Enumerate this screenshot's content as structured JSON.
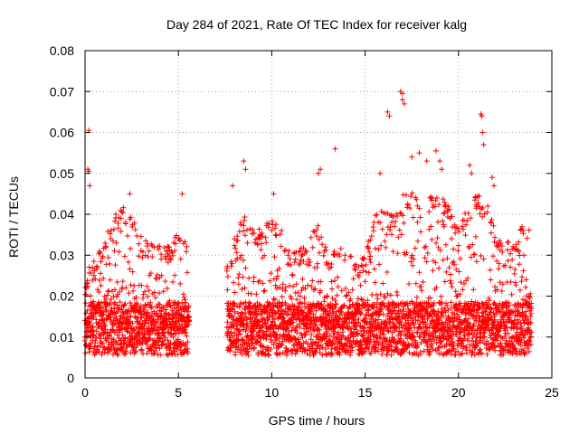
{
  "chart_data": {
    "type": "scatter",
    "title": "Day 284 of 2021, Rate Of TEC Index for receiver kalg",
    "xlabel": "GPS time / hours",
    "ylabel": "ROTI / TECUs",
    "xlim": [
      0,
      25
    ],
    "ylim": [
      0,
      0.08
    ],
    "x_ticks": [
      0,
      5,
      10,
      15,
      20,
      25
    ],
    "x_tick_labels": [
      "0",
      "5",
      "10",
      "15",
      "20",
      "25"
    ],
    "y_ticks": [
      0,
      0.01,
      0.02,
      0.03,
      0.04,
      0.05,
      0.06,
      0.07,
      0.08
    ],
    "y_tick_labels": [
      "0",
      "0.01",
      "0.02",
      "0.03",
      "0.04",
      "0.05",
      "0.06",
      "0.07",
      "0.08"
    ],
    "grid": true,
    "marker": "+",
    "series": [
      {
        "name": "ROTI",
        "color": "#ff0000",
        "segments": [
          {
            "x_start": 0.0,
            "x_end": 5.6,
            "base_y": 0.012
          },
          {
            "x_start": 7.6,
            "x_end": 23.9,
            "base_y": 0.012
          }
        ],
        "envelope": [
          {
            "x": 0.0,
            "y": 0.025
          },
          {
            "x": 0.5,
            "y": 0.03
          },
          {
            "x": 1.0,
            "y": 0.033
          },
          {
            "x": 1.5,
            "y": 0.04
          },
          {
            "x": 2.0,
            "y": 0.042
          },
          {
            "x": 2.5,
            "y": 0.041
          },
          {
            "x": 3.0,
            "y": 0.035
          },
          {
            "x": 3.5,
            "y": 0.033
          },
          {
            "x": 4.0,
            "y": 0.033
          },
          {
            "x": 4.5,
            "y": 0.032
          },
          {
            "x": 5.0,
            "y": 0.036
          },
          {
            "x": 5.5,
            "y": 0.033
          },
          {
            "x": 7.7,
            "y": 0.03
          },
          {
            "x": 8.0,
            "y": 0.035
          },
          {
            "x": 8.5,
            "y": 0.04
          },
          {
            "x": 9.0,
            "y": 0.037
          },
          {
            "x": 9.5,
            "y": 0.036
          },
          {
            "x": 10.0,
            "y": 0.04
          },
          {
            "x": 10.5,
            "y": 0.037
          },
          {
            "x": 11.0,
            "y": 0.03
          },
          {
            "x": 11.5,
            "y": 0.032
          },
          {
            "x": 12.0,
            "y": 0.035
          },
          {
            "x": 12.5,
            "y": 0.038
          },
          {
            "x": 13.0,
            "y": 0.03
          },
          {
            "x": 13.5,
            "y": 0.033
          },
          {
            "x": 14.0,
            "y": 0.032
          },
          {
            "x": 14.5,
            "y": 0.028
          },
          {
            "x": 15.0,
            "y": 0.03
          },
          {
            "x": 15.5,
            "y": 0.04
          },
          {
            "x": 16.0,
            "y": 0.043
          },
          {
            "x": 16.5,
            "y": 0.04
          },
          {
            "x": 17.0,
            "y": 0.045
          },
          {
            "x": 17.5,
            "y": 0.046
          },
          {
            "x": 18.0,
            "y": 0.042
          },
          {
            "x": 18.5,
            "y": 0.045
          },
          {
            "x": 19.0,
            "y": 0.045
          },
          {
            "x": 19.5,
            "y": 0.042
          },
          {
            "x": 20.0,
            "y": 0.037
          },
          {
            "x": 20.5,
            "y": 0.042
          },
          {
            "x": 21.0,
            "y": 0.045
          },
          {
            "x": 21.5,
            "y": 0.044
          },
          {
            "x": 22.0,
            "y": 0.035
          },
          {
            "x": 22.5,
            "y": 0.033
          },
          {
            "x": 23.0,
            "y": 0.034
          },
          {
            "x": 23.5,
            "y": 0.039
          },
          {
            "x": 23.9,
            "y": 0.035
          }
        ],
        "outliers": [
          {
            "x": 0.2,
            "y": 0.0605
          },
          {
            "x": 0.15,
            "y": 0.051
          },
          {
            "x": 0.2,
            "y": 0.0505
          },
          {
            "x": 0.25,
            "y": 0.047
          },
          {
            "x": 2.4,
            "y": 0.045
          },
          {
            "x": 5.2,
            "y": 0.045
          },
          {
            "x": 7.9,
            "y": 0.047
          },
          {
            "x": 8.5,
            "y": 0.053
          },
          {
            "x": 8.6,
            "y": 0.051
          },
          {
            "x": 10.1,
            "y": 0.045
          },
          {
            "x": 12.5,
            "y": 0.05
          },
          {
            "x": 12.6,
            "y": 0.051
          },
          {
            "x": 13.4,
            "y": 0.056
          },
          {
            "x": 15.8,
            "y": 0.05
          },
          {
            "x": 16.2,
            "y": 0.065
          },
          {
            "x": 16.3,
            "y": 0.064
          },
          {
            "x": 16.9,
            "y": 0.07
          },
          {
            "x": 17.0,
            "y": 0.0695
          },
          {
            "x": 17.0,
            "y": 0.068
          },
          {
            "x": 17.1,
            "y": 0.067
          },
          {
            "x": 17.5,
            "y": 0.054
          },
          {
            "x": 17.9,
            "y": 0.055
          },
          {
            "x": 18.3,
            "y": 0.053
          },
          {
            "x": 18.8,
            "y": 0.0555
          },
          {
            "x": 19.0,
            "y": 0.053
          },
          {
            "x": 19.1,
            "y": 0.051
          },
          {
            "x": 20.6,
            "y": 0.052
          },
          {
            "x": 20.7,
            "y": 0.05
          },
          {
            "x": 21.2,
            "y": 0.0645
          },
          {
            "x": 21.25,
            "y": 0.064
          },
          {
            "x": 21.3,
            "y": 0.06
          },
          {
            "x": 21.35,
            "y": 0.057
          },
          {
            "x": 21.8,
            "y": 0.049
          },
          {
            "x": 21.9,
            "y": 0.047
          }
        ]
      }
    ]
  }
}
